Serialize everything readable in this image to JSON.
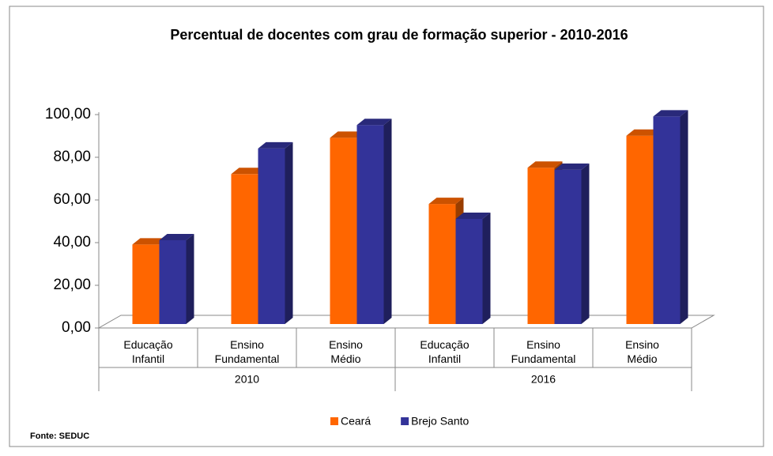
{
  "chart_data": {
    "type": "bar3d",
    "title": "Percentual de docentes com grau de formação superior  - 2010-2016",
    "categories": [
      "Educação Infantil",
      "Ensino Fundamental",
      "Ensino Médio",
      "Educação Infantil",
      "Ensino Fundamental",
      "Ensino Médio"
    ],
    "category_groups": [
      "2010",
      "2016"
    ],
    "series": [
      {
        "name": "Ceará",
        "color": "#ff6600",
        "values": [
          38,
          71,
          88,
          57,
          74,
          89
        ]
      },
      {
        "name": "Brejo Santo",
        "color": "#333399",
        "values": [
          40,
          83,
          94,
          50,
          73,
          98
        ]
      }
    ],
    "ylim": [
      0,
      100
    ],
    "yticks": [
      {
        "value": 0,
        "label": "0,00"
      },
      {
        "value": 20,
        "label": "20,00"
      },
      {
        "value": 40,
        "label": "40,00"
      },
      {
        "value": 60,
        "label": "60,00"
      },
      {
        "value": 80,
        "label": "80,00"
      },
      {
        "value": 100,
        "label": "100,00"
      }
    ],
    "source": "Fonte: SEDUC"
  }
}
